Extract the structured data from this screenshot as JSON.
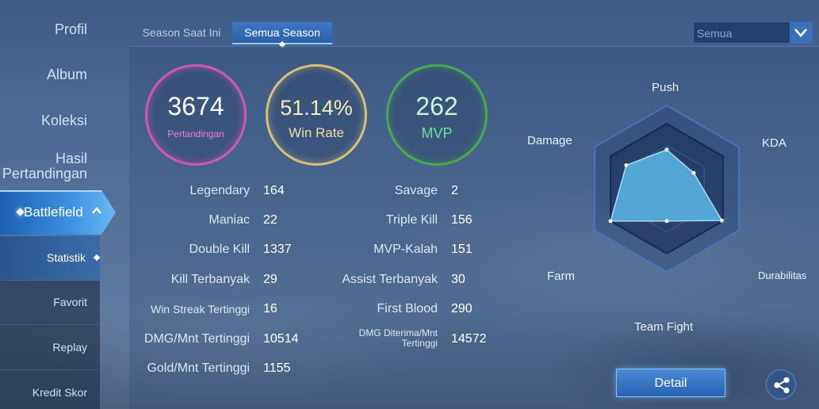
{
  "sidebar": {
    "items": [
      {
        "label": "Profil"
      },
      {
        "label": "Album"
      },
      {
        "label": "Koleksi"
      },
      {
        "label": "Hasil Pertandingan"
      }
    ],
    "battlefield": {
      "label": "Battlefield"
    },
    "sub_items": [
      {
        "label": "Statistik"
      },
      {
        "label": "Favorit"
      },
      {
        "label": "Replay"
      },
      {
        "label": "Kredit Skor"
      }
    ]
  },
  "tabs": [
    {
      "label": "Season Saat Ini"
    },
    {
      "label": "Semua Season"
    }
  ],
  "filter": {
    "value": "Semua"
  },
  "summary": {
    "matches": {
      "value": "3674",
      "label": "Pertandingan"
    },
    "win_rate": {
      "value": "51.14%",
      "label": "Win Rate"
    },
    "mvp": {
      "value": "262",
      "label": "MVP"
    }
  },
  "stats_left": [
    {
      "label": "Legendary",
      "value": "164"
    },
    {
      "label": "Maniac",
      "value": "22"
    },
    {
      "label": "Double Kill",
      "value": "1337"
    },
    {
      "label": "Kill Terbanyak",
      "value": "29"
    },
    {
      "label": "Win Streak Tertinggi",
      "value": "16"
    },
    {
      "label": "DMG/Mnt Tertinggi",
      "value": "10514"
    },
    {
      "label": "Gold/Mnt Tertinggi",
      "value": "1155"
    }
  ],
  "stats_right": [
    {
      "label": "Savage",
      "value": "2"
    },
    {
      "label": "Triple Kill",
      "value": "156"
    },
    {
      "label": "MVP-Kalah",
      "value": "151"
    },
    {
      "label": "Assist Terbanyak",
      "value": "30"
    },
    {
      "label": "First Blood",
      "value": "290"
    },
    {
      "label": "DMG Diterima/Mnt Tertinggi",
      "value": "14572"
    }
  ],
  "radar": {
    "labels": {
      "push": "Push",
      "kda": "KDA",
      "durability": "Durabilitas",
      "team_fight": "Team Fight",
      "farm": "Farm",
      "damage": "Damage"
    },
    "levels": {
      "push": 0.6,
      "kda": 0.48,
      "durability": 0.98,
      "team_fight": 0.5,
      "farm": 1.0,
      "damage": 0.72
    }
  },
  "buttons": {
    "detail": "Detail"
  },
  "icons": {
    "share": "share-icon",
    "dropdown": "chevron-down-icon",
    "expand": "chevron-up-icon"
  },
  "colors": {
    "matches_ring": "#d155b8",
    "win_rate_ring": "#d9bf78",
    "mvp_ring": "#4aa84a",
    "radar_fill": "#5bb8e8"
  }
}
